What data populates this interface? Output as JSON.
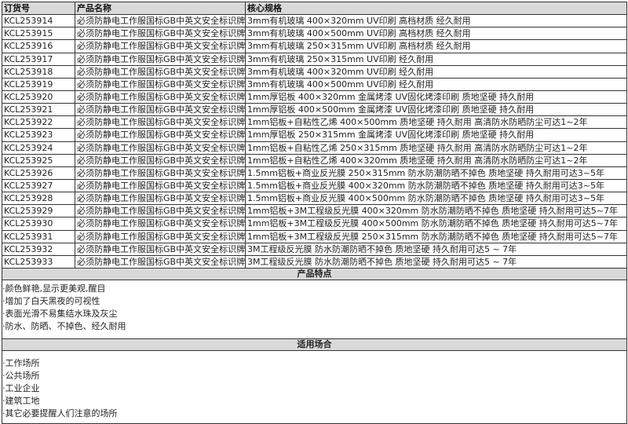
{
  "table": {
    "headers": [
      "订货号",
      "产品名称",
      "核心规格"
    ],
    "rows": [
      [
        "KCL253914",
        "必须防静电工作服国标GB中英文安全标识牌",
        "3mm有机玻璃 400×320mm UV印刷 高档材质 经久耐用"
      ],
      [
        "KCL253915",
        "必须防静电工作服国标GB中英文安全标识牌",
        "3mm有机玻璃 400×500mm UV印刷 高档材质 经久耐用"
      ],
      [
        "KCL253916",
        "必须防静电工作服国标GB中英文安全标识牌",
        "3mm有机玻璃 250×315mm UV印刷 高档材质 经久耐用"
      ],
      [
        "KCL253917",
        "必须防静电工作服国标GB中英文安全标识牌",
        "3mm有机玻璃 250×315mm UV印刷 经久耐用"
      ],
      [
        "KCL253918",
        "必须防静电工作服国标GB中英文安全标识牌",
        "3mm有机玻璃 400×320mm UV印刷 经久耐用"
      ],
      [
        "KCL253919",
        "必须防静电工作服国标GB中英文安全标识牌",
        "3mm有机玻璃 400×500mm UV印刷 经久耐用"
      ],
      [
        "KCL253920",
        "必须防静电工作服国标GB中英文安全标识牌",
        "1mm厚铝板 400×320mm 金属烤漆 UV固化烤漆印刷 质地坚硬 持久耐用"
      ],
      [
        "KCL253921",
        "必须防静电工作服国标GB中英文安全标识牌",
        "1mm厚铝板 400×500mm 金属烤漆 UV固化烤漆印刷 质地坚硬 持久耐用"
      ],
      [
        "KCL253922",
        "必须防静电工作服国标GB中英文安全标识牌",
        "1mm铝板+自粘性乙烯 400×500mm 质地坚硬 持久耐用 高清防水防晒防尘可达1~2年"
      ],
      [
        "KCL253923",
        "必须防静电工作服国标GB中英文安全标识牌",
        "1mm厚铝板 250×315mm 金属烤漆 UV固化烤漆印刷 质地坚硬 持久耐用"
      ],
      [
        "KCL253924",
        "必须防静电工作服国标GB中英文安全标识牌",
        "1mm铝板+自粘性乙烯 250×315mm 质地坚硬 持久耐用 高清防水防晒防尘可达1~2年"
      ],
      [
        "KCL253925",
        "必须防静电工作服国标GB中英文安全标识牌",
        "1mm铝板+自粘性乙烯 400×320mm 质地坚硬 持久耐用 高清防水防晒防尘可达1~2年"
      ],
      [
        "KCL253926",
        "必须防静电工作服国标GB中英文安全标识牌",
        "1.5mm铝板+商业反光膜 250×315mm 防水防潮防晒不掉色 质地坚硬 持久耐用可达3~5年"
      ],
      [
        "KCL253927",
        "必须防静电工作服国标GB中英文安全标识牌",
        "1.5mm铝板+商业反光膜 400×320mm 防水防潮防晒不掉色 质地坚硬 持久耐用可达3~5年"
      ],
      [
        "KCL253928",
        "必须防静电工作服国标GB中英文安全标识牌",
        "1.5mm铝板+商业反光膜 400×500mm 防水防潮防晒不掉色 质地坚硬 持久耐用可达3~5年"
      ],
      [
        "KCL253929",
        "必须防静电工作服国标GB中英文安全标识牌",
        "1mm铝板+3M工程级反光膜 400×320mm 防水防潮防晒不掉色 质地坚硬 持久耐用可达5~7年"
      ],
      [
        "KCL253930",
        "必须防静电工作服国标GB中英文安全标识牌",
        "1mm铝板+3M工程级反光膜 400×500mm 防水防潮防晒不掉色 质地坚硬 持久耐用可达5~7年"
      ],
      [
        "KCL253931",
        "必须防静电工作服国标GB中英文安全标识牌",
        "1mm铝板+3M工程级反光膜 250×315mm 防水防潮防晒不掉色 质地坚硬 持久耐用可达5~7年"
      ],
      [
        "KCL253932",
        "必须防静电工作服国标GB中英文安全标识牌",
        "3M工程级反光膜 防水防潮防晒不掉色 质地坚硬 持久耐用可达5 ~ 7年"
      ],
      [
        "KCL253933",
        "必须防静电工作服国标GB中英文安全标识牌",
        "3M工程级反光膜 防水防潮防晒不掉色 质地坚硬 持久耐用可达5 ~ 7年"
      ]
    ]
  },
  "features": {
    "title": "产品特点",
    "items": [
      "·颜色鲜艳,显示更美观,醒目",
      "·增加了白天黑夜的可视性",
      "·表面光滑不易集结水珠及灰尘",
      "·防水、防晒、不掉色、经久耐用"
    ]
  },
  "applications": {
    "title": "适用场合",
    "items": [
      "·工作场所",
      "·公共场所",
      "·工业企业",
      "·建筑工地",
      "·其它必要提醒人们注意的场所"
    ]
  }
}
